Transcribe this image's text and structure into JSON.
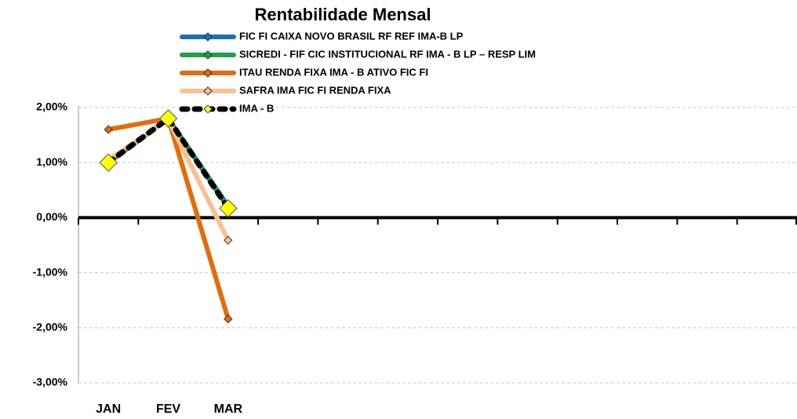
{
  "chart_data": {
    "type": "line",
    "title": "Rentabilidade Mensal",
    "categories": [
      "JAN",
      "FEV",
      "MAR",
      null,
      null,
      null,
      null,
      null,
      null,
      null,
      null,
      null
    ],
    "series": [
      {
        "name": "FIC FI CAIXA NOVO BRASIL RF REF IMA-B LP",
        "color": "#1f6fb4",
        "values": [
          1.0,
          1.8,
          0.21,
          null,
          null,
          null,
          null,
          null,
          null,
          null,
          null,
          null
        ]
      },
      {
        "name": "SICREDI - FIF CIC INSTITUCIONAL RF IMA - B LP – RESP LIM",
        "color": "#1fa34a",
        "values": [
          1.0,
          1.8,
          0.18,
          null,
          null,
          null,
          null,
          null,
          null,
          null,
          null,
          null
        ]
      },
      {
        "name": "ITAU RENDA FIXA IMA - B ATIVO FIC FI",
        "color": "#e46c0a",
        "values": [
          1.6,
          1.8,
          -1.84,
          null,
          null,
          null,
          null,
          null,
          null,
          null,
          null,
          null
        ]
      },
      {
        "name": "SAFRA IMA FIC FI RENDA FIXA",
        "color": "#fac090",
        "values": [
          1.05,
          1.78,
          -0.41,
          null,
          null,
          null,
          null,
          null,
          null,
          null,
          null,
          null
        ]
      },
      {
        "name": "IMA - B",
        "color": "#000000",
        "values": [
          1.0,
          1.8,
          0.17,
          null,
          null,
          null,
          null,
          null,
          null,
          null,
          null,
          null
        ]
      }
    ],
    "ylim": [
      -3,
      2
    ],
    "yticks": [
      {
        "value": -3,
        "label": "-3,00%"
      },
      {
        "value": -2,
        "label": "-2,00%"
      },
      {
        "value": -1,
        "label": "-1,00%"
      },
      {
        "value": 0,
        "label": "0,00%"
      },
      {
        "value": 1,
        "label": "1,00%"
      },
      {
        "value": 2,
        "label": "2,00%"
      }
    ],
    "grid": true
  }
}
